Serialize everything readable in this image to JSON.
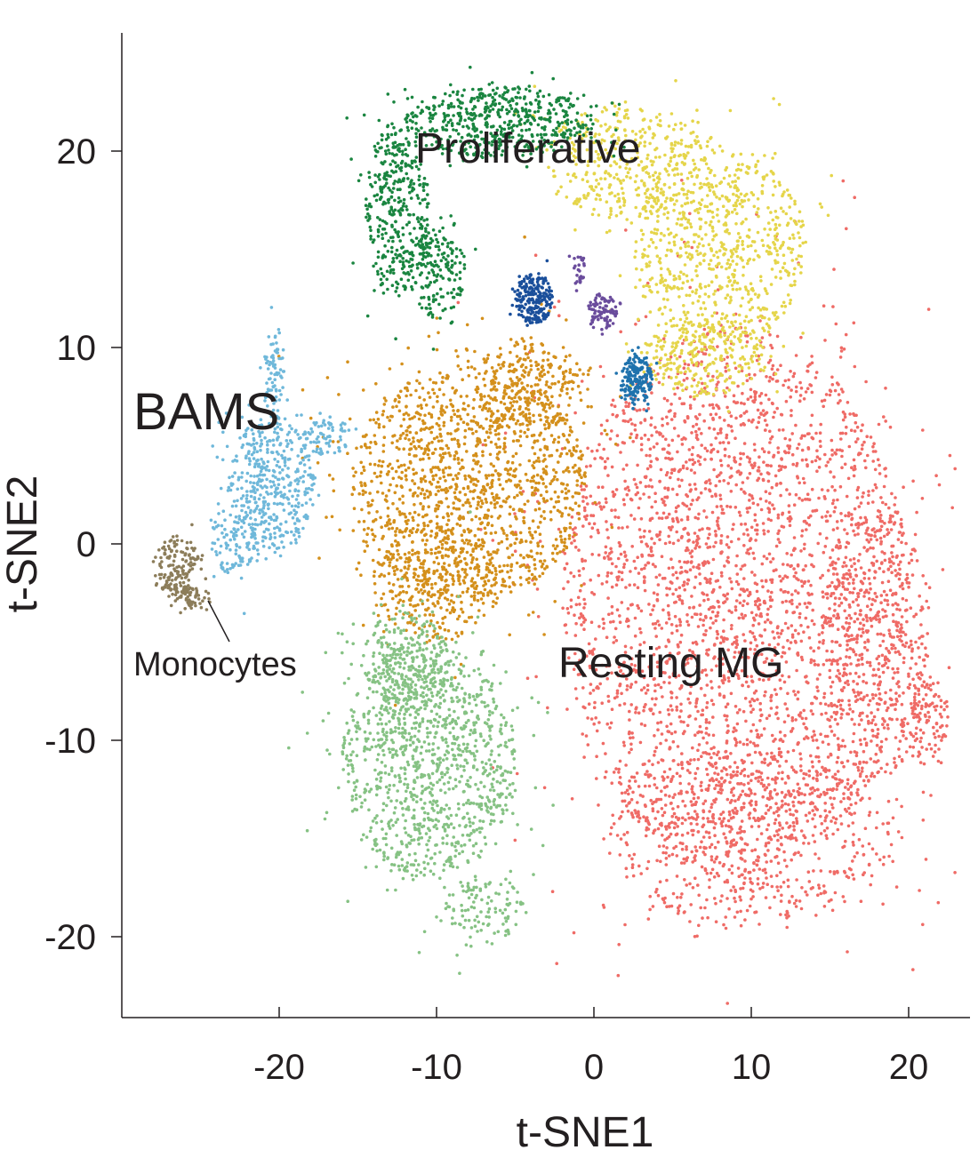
{
  "chart_data": {
    "type": "scatter",
    "title": "",
    "xlabel": "t-SNE1",
    "ylabel": "t-SNE2",
    "xlim": [
      -30,
      23.5
    ],
    "ylim": [
      -24,
      26
    ],
    "xticks": [
      -20,
      -10,
      0,
      10,
      20
    ],
    "yticks": [
      -20,
      -10,
      0,
      10,
      20
    ],
    "xtick_labels": [
      "-20",
      "-10",
      "0",
      "10",
      "20"
    ],
    "ytick_labels": [
      "-20",
      "-10",
      "0",
      "10",
      "20"
    ],
    "grid": false,
    "legend": "none",
    "annotations": [
      {
        "text": "Proliferative",
        "x": -11.5,
        "y": 19.3
      },
      {
        "text": "BAMS",
        "x": -29,
        "y": 6.2
      },
      {
        "text": "Resting MG",
        "x": -2,
        "y": -7.4
      },
      {
        "text": "Monocytes",
        "x": -29,
        "y": -6.8
      }
    ],
    "series": [
      {
        "name": "Resting MG",
        "color": "#ef6b66",
        "n": 4200,
        "regions": [
          {
            "cx": 9,
            "cy": -3,
            "rx": 11,
            "ry": 14,
            "w": 8
          },
          {
            "cx": 18,
            "cy": -5,
            "rx": 3.5,
            "ry": 7,
            "w": 1
          },
          {
            "cx": 10,
            "cy": -15,
            "rx": 9,
            "ry": 4.5,
            "w": 1.5
          },
          {
            "cx": 21,
            "cy": -9,
            "rx": 1.5,
            "ry": 2.5,
            "w": 0.3
          }
        ]
      },
      {
        "name": "Orange cluster",
        "color": "#d4901c",
        "n": 2000,
        "regions": [
          {
            "cx": -8,
            "cy": 3,
            "rx": 7.5,
            "ry": 6,
            "w": 5
          },
          {
            "cx": -4,
            "cy": 8,
            "rx": 3.5,
            "ry": 2.5,
            "w": 1
          },
          {
            "cx": -10,
            "cy": -2,
            "rx": 4,
            "ry": 3,
            "w": 1
          }
        ]
      },
      {
        "name": "Light green cluster",
        "color": "#86c284",
        "n": 1500,
        "regions": [
          {
            "cx": -10.5,
            "cy": -11,
            "rx": 5.5,
            "ry": 6,
            "w": 4
          },
          {
            "cx": -7,
            "cy": -18.5,
            "rx": 2.5,
            "ry": 1.8,
            "w": 0.4
          },
          {
            "cx": -12,
            "cy": -6,
            "rx": 3,
            "ry": 2.5,
            "w": 0.8
          }
        ]
      },
      {
        "name": "Yellow cluster",
        "color": "#e5d54a",
        "n": 1400,
        "regions": [
          {
            "cx": 8,
            "cy": 15,
            "rx": 5.5,
            "ry": 5,
            "w": 3
          },
          {
            "cx": 2,
            "cy": 19.5,
            "rx": 5,
            "ry": 3,
            "w": 1.5
          },
          {
            "cx": 7,
            "cy": 9.5,
            "rx": 4,
            "ry": 2,
            "w": 1
          }
        ]
      },
      {
        "name": "Proliferative",
        "color": "#1a8540",
        "n": 1100,
        "regions": [
          {
            "cx": -6,
            "cy": 21.5,
            "rx": 6,
            "ry": 1.8,
            "w": 3
          },
          {
            "cx": -12.5,
            "cy": 17,
            "rx": 2,
            "ry": 4.5,
            "w": 2
          },
          {
            "cx": -10,
            "cy": 14,
            "rx": 1.8,
            "ry": 2.5,
            "w": 1
          }
        ]
      },
      {
        "name": "BAMS",
        "color": "#6fb8da",
        "n": 700,
        "regions": [
          {
            "cx": -20.5,
            "cy": 3,
            "rx": 2.8,
            "ry": 3.5,
            "w": 3
          },
          {
            "cx": -20.3,
            "cy": 8.5,
            "rx": 0.7,
            "ry": 2.5,
            "w": 0.6
          },
          {
            "cx": -23,
            "cy": 0,
            "rx": 1.5,
            "ry": 1.5,
            "w": 0.6
          },
          {
            "cx": -17,
            "cy": 5.5,
            "rx": 1.5,
            "ry": 1,
            "w": 0.5
          }
        ]
      },
      {
        "name": "Dark blue cluster",
        "color": "#1a4f9b",
        "n": 220,
        "regions": [
          {
            "cx": -3.8,
            "cy": 12.5,
            "rx": 1.2,
            "ry": 1.3,
            "w": 1
          }
        ]
      },
      {
        "name": "Teal blue cluster",
        "color": "#1f72ad",
        "n": 180,
        "regions": [
          {
            "cx": 2.7,
            "cy": 8.3,
            "rx": 1,
            "ry": 1.2,
            "w": 1
          }
        ]
      },
      {
        "name": "Purple cluster",
        "color": "#6a4c9c",
        "n": 110,
        "regions": [
          {
            "cx": 0.5,
            "cy": 11.8,
            "rx": 1,
            "ry": 1,
            "w": 1
          },
          {
            "cx": -1,
            "cy": 14,
            "rx": 0.4,
            "ry": 0.8,
            "w": 0.3
          }
        ]
      },
      {
        "name": "Monocytes",
        "color": "#8c7d5a",
        "n": 220,
        "regions": [
          {
            "cx": -26.5,
            "cy": -1.2,
            "rx": 1.5,
            "ry": 1.6,
            "w": 2
          },
          {
            "cx": -25.5,
            "cy": -2.8,
            "rx": 1.2,
            "ry": 0.6,
            "w": 0.6
          }
        ]
      }
    ]
  }
}
